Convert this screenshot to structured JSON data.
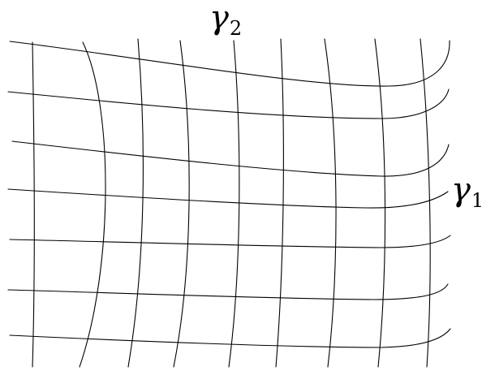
{
  "labels": {
    "gamma2": {
      "symbol": "γ",
      "subscript": "2"
    },
    "gamma1": {
      "symbol": "γ",
      "subscript": "1"
    }
  },
  "style": {
    "stroke_color": "#000000",
    "background": "#ffffff"
  }
}
